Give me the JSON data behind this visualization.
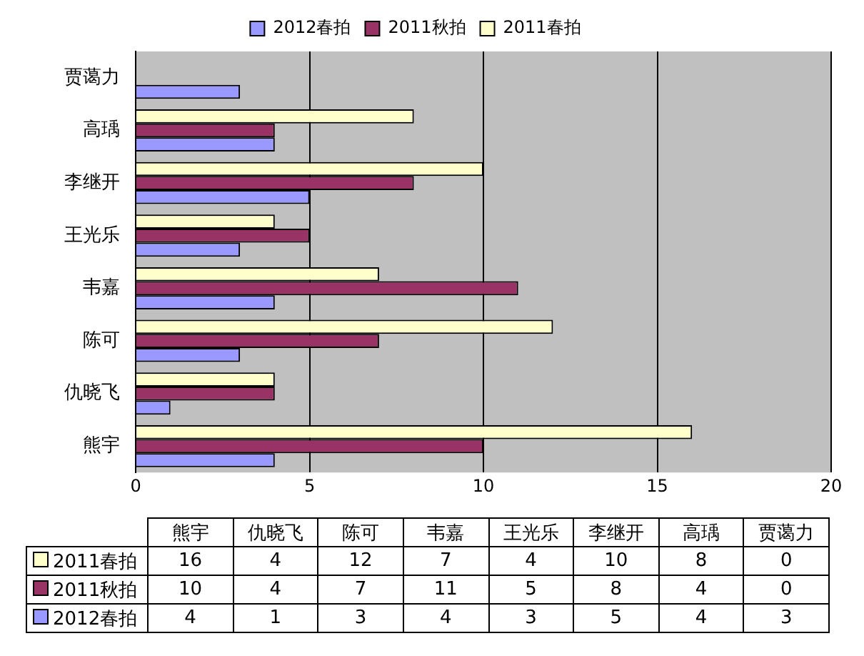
{
  "chart_data": [
    {
      "type": "bar",
      "orientation": "horizontal",
      "categories": [
        "贾蔼力",
        "高瑀",
        "李继开",
        "王光乐",
        "韦嘉",
        "陈可",
        "仇晓飞",
        "熊宇"
      ],
      "series": [
        {
          "name": "2012春拍",
          "color": "#9999ff",
          "values": [
            3,
            4,
            5,
            3,
            4,
            3,
            1,
            4
          ]
        },
        {
          "name": "2011秋拍",
          "color": "#993366",
          "values": [
            0,
            4,
            8,
            5,
            11,
            7,
            4,
            10
          ]
        },
        {
          "name": "2011春拍",
          "color": "#ffffcc",
          "values": [
            0,
            8,
            10,
            4,
            7,
            12,
            4,
            16
          ]
        }
      ],
      "xlim": [
        0,
        20
      ],
      "xticks": [
        0,
        5,
        10,
        15,
        20
      ],
      "grid": "x",
      "legend": "top"
    },
    {
      "type": "other",
      "categories": [
        "熊宇",
        "仇晓飞",
        "陈可",
        "韦嘉",
        "王光乐",
        "李继开",
        "高瑀",
        "贾蔼力"
      ],
      "series": [
        {
          "name": "2011春拍",
          "color": "#ffffcc",
          "values": [
            16,
            4,
            12,
            7,
            4,
            10,
            8,
            0
          ]
        },
        {
          "name": "2011秋拍",
          "color": "#993366",
          "values": [
            10,
            4,
            7,
            11,
            5,
            8,
            4,
            0
          ]
        },
        {
          "name": "2012春拍",
          "color": "#9999ff",
          "values": [
            4,
            1,
            3,
            4,
            3,
            5,
            4,
            3
          ]
        }
      ],
      "data_labels": true
    }
  ]
}
